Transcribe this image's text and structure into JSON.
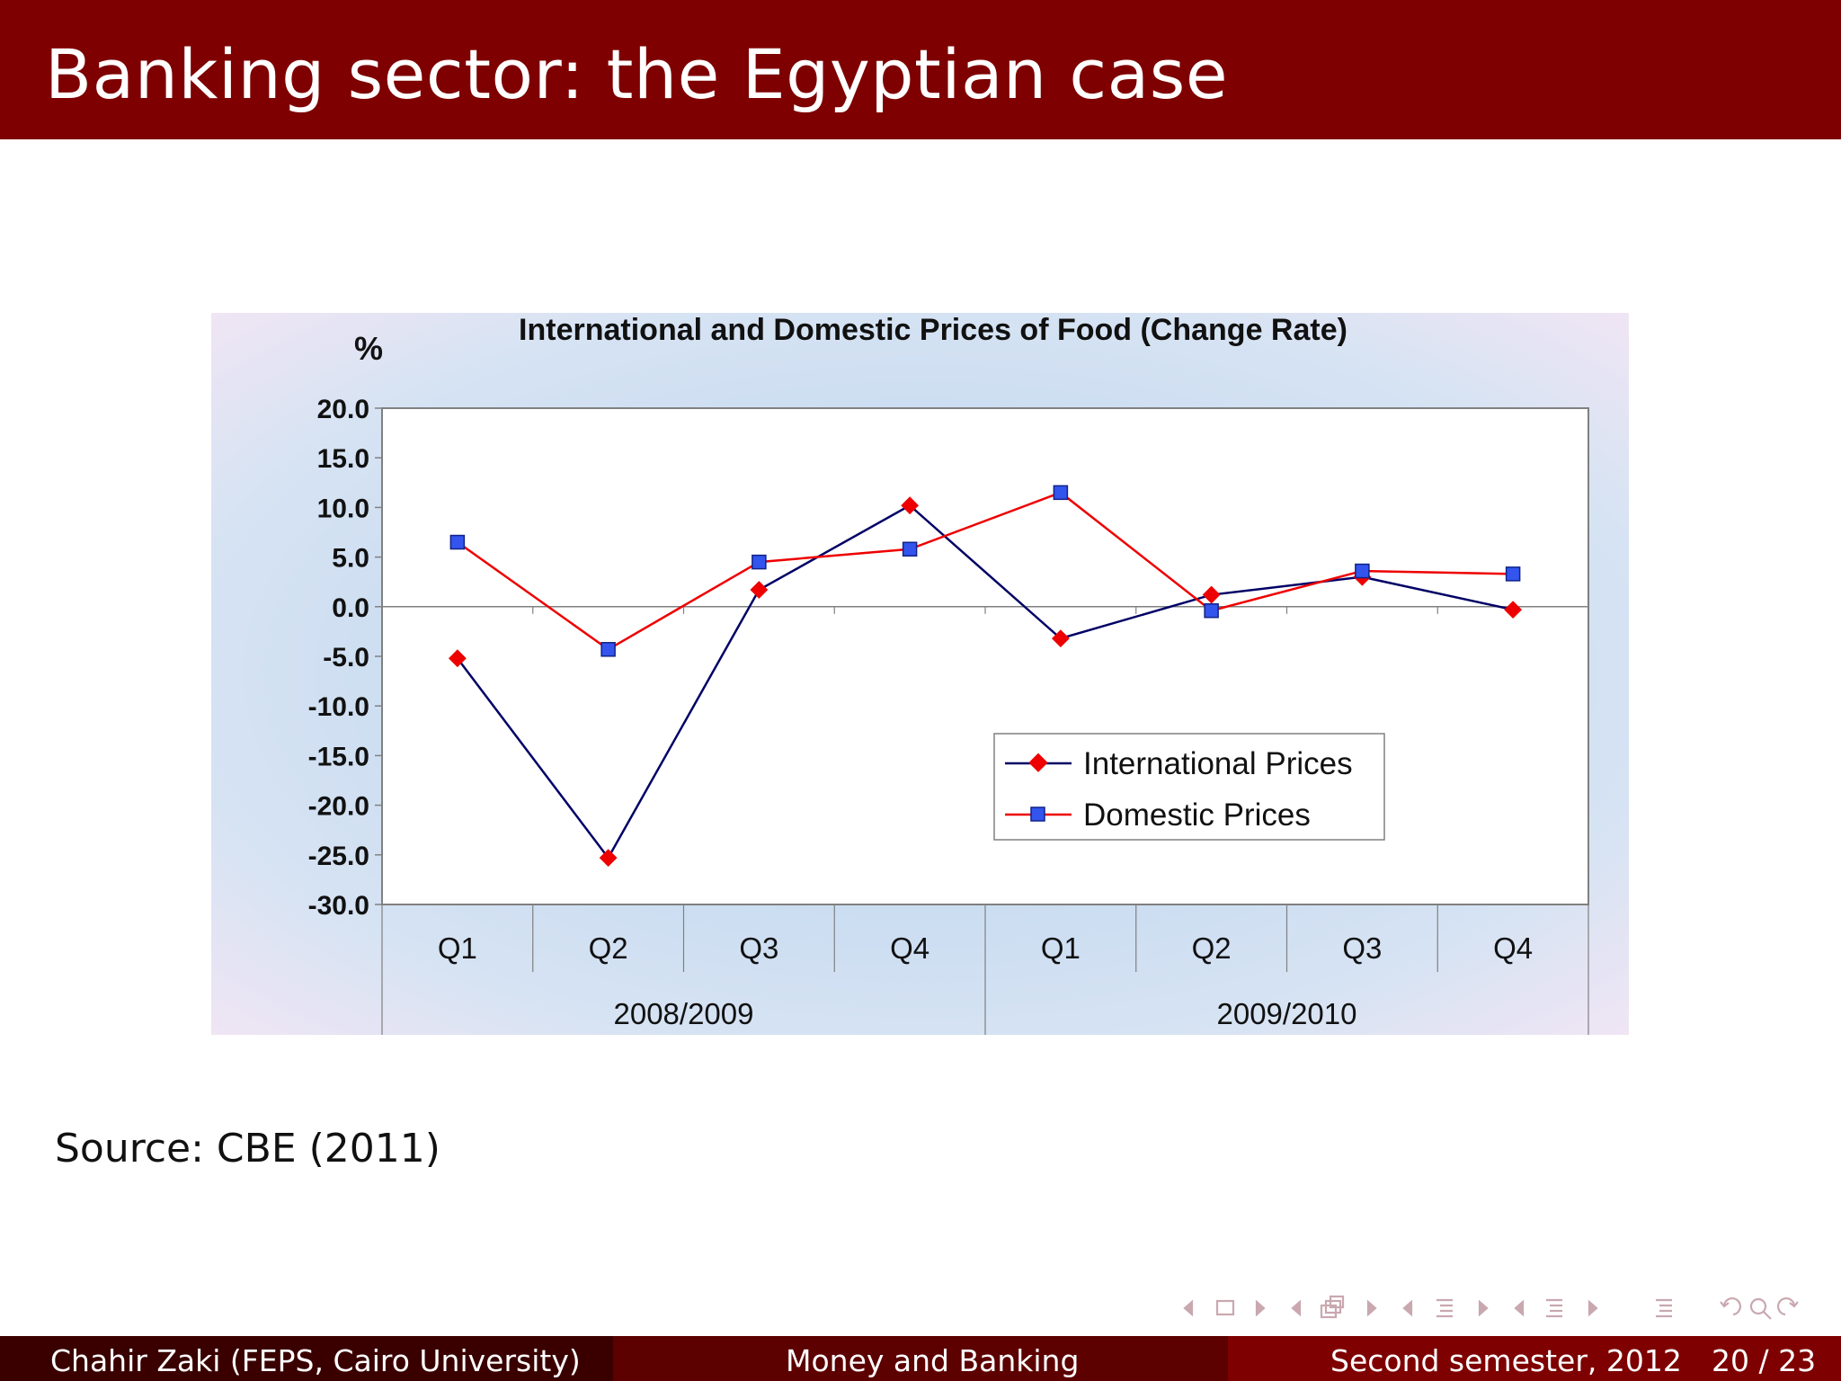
{
  "slide": {
    "title": "Banking sector: the Egyptian case",
    "source": "Source:  CBE (2011)"
  },
  "footer": {
    "author": "Chahir Zaki  (FEPS, Cairo University)",
    "course": "Money and Banking",
    "term": "Second semester, 2012",
    "page": "20 / 23"
  },
  "colors": {
    "title_bar": "#7e0000",
    "international": "#000066",
    "international_marker": "#ee0000",
    "domestic": "#ee0000",
    "domestic_marker": "#3355ee"
  },
  "icons": [
    "nav-prev-frame-icon",
    "nav-frame-icon",
    "nav-next-frame-icon",
    "nav-prev-subsection-icon",
    "nav-subsection-icon",
    "nav-next-subsection-icon",
    "nav-prev-section-icon",
    "nav-section-icon",
    "nav-next-section-icon",
    "nav-prev-slide-icon",
    "nav-slide-icon",
    "nav-next-slide-icon",
    "nav-outline-icon",
    "nav-undo-icon",
    "nav-search-icon",
    "nav-redo-icon"
  ],
  "chart_data": {
    "type": "line",
    "title": "International and Domestic Prices of Food (Change Rate)",
    "ylabel": "%",
    "xlabel": "",
    "ylim": [
      -30,
      20
    ],
    "yticks": [
      "20.0",
      "15.0",
      "10.0",
      "5.0",
      "0.0",
      "-5.0",
      "-10.0",
      "-15.0",
      "-20.0",
      "-25.0",
      "-30.0"
    ],
    "categories": [
      "Q1",
      "Q2",
      "Q3",
      "Q4",
      "Q1",
      "Q2",
      "Q3",
      "Q4"
    ],
    "groups": [
      {
        "label": "2008/2009",
        "span": 4
      },
      {
        "label": "2009/2010",
        "span": 4
      }
    ],
    "legend_position": "lower-right inside plot",
    "grid": false,
    "series": [
      {
        "name": "International Prices",
        "marker": "diamond",
        "values": [
          -5.2,
          -25.3,
          1.7,
          10.2,
          -3.2,
          1.2,
          3.0,
          -0.3
        ]
      },
      {
        "name": "Domestic Prices",
        "marker": "square",
        "values": [
          6.5,
          -4.3,
          4.5,
          5.8,
          11.5,
          -0.4,
          3.6,
          3.3
        ]
      }
    ]
  }
}
